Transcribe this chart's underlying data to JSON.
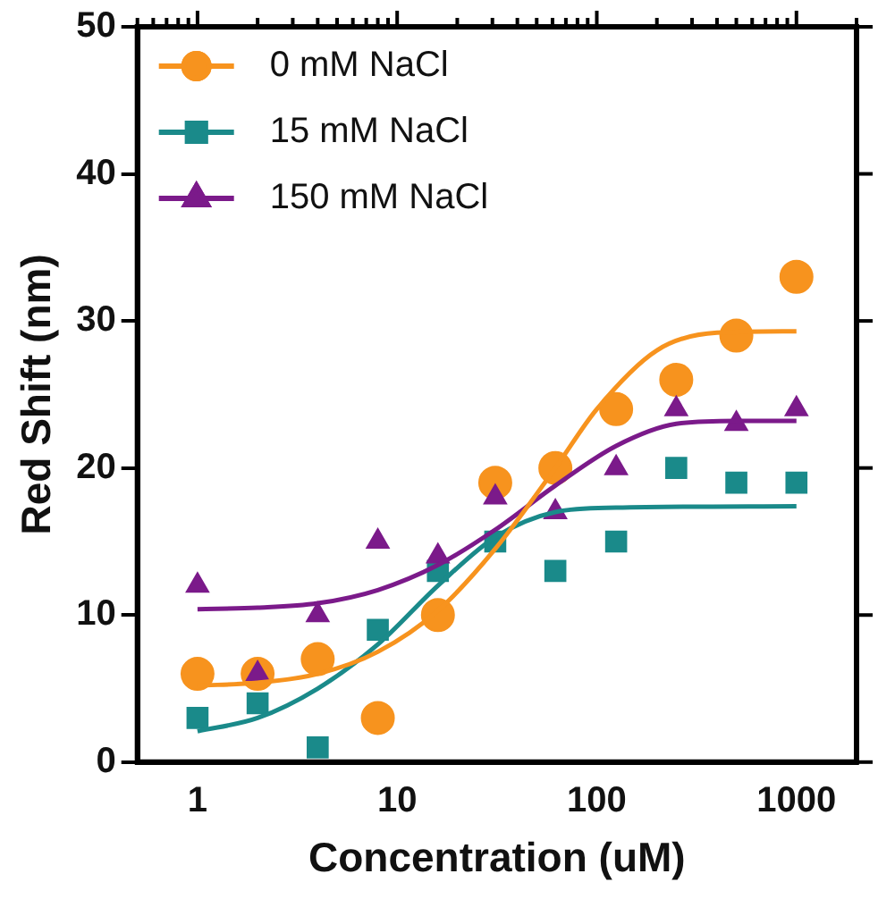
{
  "chart_data": {
    "type": "scatter",
    "xlabel": "Concentration (uM)",
    "ylabel": "Red Shift (nm)",
    "log": "x",
    "xlim": [
      0.5,
      2000
    ],
    "ylim": [
      0,
      50
    ],
    "xticks": [
      {
        "value": 0.5,
        "label": null
      },
      {
        "value": 0.6,
        "label": null
      },
      {
        "value": 0.7,
        "label": null
      },
      {
        "value": 0.8,
        "label": null
      },
      {
        "value": 0.9,
        "label": null
      },
      1,
      {
        "value": 2,
        "label": null
      },
      {
        "value": 3,
        "label": null
      },
      {
        "value": 4,
        "label": null
      },
      {
        "value": 5,
        "label": null
      },
      {
        "value": 6,
        "label": null
      },
      {
        "value": 7,
        "label": null
      },
      {
        "value": 8,
        "label": null
      },
      {
        "value": 9,
        "label": null
      },
      10,
      {
        "value": 20,
        "label": null
      },
      {
        "value": 30,
        "label": null
      },
      {
        "value": 40,
        "label": null
      },
      {
        "value": 50,
        "label": null
      },
      {
        "value": 60,
        "label": null
      },
      {
        "value": 70,
        "label": null
      },
      {
        "value": 80,
        "label": null
      },
      {
        "value": 90,
        "label": null
      },
      100,
      {
        "value": 200,
        "label": null
      },
      {
        "value": 300,
        "label": null
      },
      {
        "value": 400,
        "label": null
      },
      {
        "value": 500,
        "label": null
      },
      {
        "value": 600,
        "label": null
      },
      {
        "value": 700,
        "label": null
      },
      {
        "value": 800,
        "label": null
      },
      {
        "value": 900,
        "label": null
      },
      1000,
      {
        "value": 2000,
        "label": null
      }
    ],
    "yticks": [
      0,
      10,
      20,
      30,
      40,
      50
    ],
    "grid": false,
    "legend": "top left",
    "line_style": "solid",
    "x": [
      1,
      2,
      4,
      8,
      16,
      31,
      62,
      125,
      250,
      500,
      1000
    ],
    "series": [
      {
        "name": "0 mM NaCl",
        "color": "#f7931e",
        "marker": "circle",
        "values": [
          6,
          6,
          7,
          3,
          10,
          19,
          20,
          24,
          26,
          29,
          33
        ]
      },
      {
        "name": "15 mM NaCl",
        "color": "#1a8a8a",
        "marker": "square",
        "values": [
          3,
          4,
          1,
          9,
          13,
          15,
          13,
          15,
          20,
          19,
          19
        ]
      },
      {
        "name": "150 mM NaCl",
        "color": "#7b1a8a",
        "marker": "triangle",
        "values": [
          12,
          6,
          10,
          15,
          14,
          18,
          17,
          20,
          24,
          23,
          24
        ]
      },
      {
        "type": "line",
        "color": "#f7931e",
        "marker": "none",
        "x": [
          1,
          2,
          4,
          8,
          16,
          31,
          62,
          100,
          200,
          400,
          1000
        ],
        "values": [
          5.2,
          5.4,
          6,
          7.5,
          10.3,
          14.5,
          20,
          24,
          28,
          29.2,
          29.3
        ]
      },
      {
        "type": "line",
        "color": "#1a8a8a",
        "marker": "none",
        "x": [
          1,
          2,
          4,
          8,
          16,
          31,
          62,
          125,
          1000
        ],
        "values": [
          2.1,
          3,
          5,
          8,
          12,
          15.3,
          17,
          17.3,
          17.4
        ]
      },
      {
        "type": "line",
        "color": "#7b1a8a",
        "marker": "none",
        "x": [
          1,
          2,
          4,
          8,
          16,
          31,
          62,
          125,
          250,
          500,
          1000
        ],
        "values": [
          10.4,
          10.5,
          10.8,
          11.7,
          13.4,
          15.8,
          18.8,
          21.5,
          23,
          23.2,
          23.2
        ]
      }
    ]
  }
}
